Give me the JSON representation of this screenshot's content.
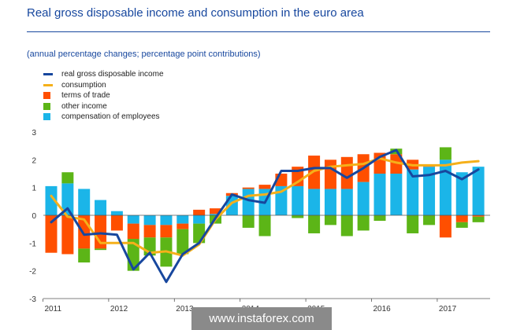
{
  "page": {
    "title": "Real gross disposable income and consumption in the euro area",
    "subtitle": "(annual percentage changes; percentage point contributions)",
    "watermark": "www.instaforex.com"
  },
  "legend": [
    {
      "label": "real gross disposable income",
      "kind": "line",
      "color": "#17479e"
    },
    {
      "label": "consumption",
      "kind": "line",
      "color": "#f5b01a"
    },
    {
      "label": "terms of trade",
      "kind": "box",
      "color": "#ff4f00"
    },
    {
      "label": "other income",
      "kind": "box",
      "color": "#5cb517"
    },
    {
      "label": "compensation of employees",
      "kind": "box",
      "color": "#1bb5e8"
    }
  ],
  "chart_data": {
    "type": "bar",
    "stacked": true,
    "ylim": [
      -3,
      3
    ],
    "yticks": [
      3,
      2,
      1,
      0,
      -1,
      -2,
      -3
    ],
    "year_labels": [
      "2011",
      "2012",
      "2013",
      "2014",
      "2015",
      "2016",
      "2017"
    ],
    "categories": [
      "2011Q1",
      "2011Q2",
      "2011Q3",
      "2011Q4",
      "2012Q1",
      "2012Q2",
      "2012Q3",
      "2012Q4",
      "2013Q1",
      "2013Q2",
      "2013Q3",
      "2013Q4",
      "2014Q1",
      "2014Q2",
      "2014Q3",
      "2014Q4",
      "2015Q1",
      "2015Q2",
      "2015Q3",
      "2015Q4",
      "2016Q1",
      "2016Q2",
      "2016Q3",
      "2016Q4",
      "2017Q1",
      "2017Q2",
      "2017Q3"
    ],
    "grid": false,
    "series": [
      {
        "name": "compensation of employees",
        "kind": "bar",
        "color": "#1bb5e8",
        "values": [
          1.05,
          1.15,
          0.95,
          0.55,
          0.15,
          -0.3,
          -0.35,
          -0.35,
          -0.3,
          -0.3,
          0.05,
          0.7,
          0.95,
          0.95,
          1.05,
          1.05,
          0.95,
          0.95,
          0.95,
          1.2,
          1.5,
          1.5,
          1.65,
          1.75,
          2.0,
          1.55,
          1.75
        ]
      },
      {
        "name": "terms of trade",
        "kind": "bar",
        "color": "#ff4f00",
        "values": [
          -1.35,
          -1.4,
          -1.2,
          -1.2,
          -0.55,
          -0.55,
          -0.45,
          -0.45,
          -0.2,
          0.2,
          0.2,
          0.1,
          0.05,
          0.15,
          0.45,
          0.7,
          1.2,
          1.05,
          1.15,
          1.0,
          0.75,
          0.7,
          0.35,
          0.05,
          -0.8,
          -0.25,
          -0.05
        ]
      },
      {
        "name": "other income",
        "kind": "bar",
        "color": "#5cb517",
        "values": [
          0.0,
          0.4,
          -0.5,
          -0.05,
          0.0,
          -1.15,
          -0.65,
          -1.05,
          -0.9,
          -0.7,
          -0.3,
          0.0,
          -0.45,
          -0.75,
          0.0,
          -0.1,
          -0.65,
          -0.35,
          -0.75,
          -0.55,
          -0.2,
          0.2,
          -0.65,
          -0.35,
          0.45,
          -0.2,
          -0.2
        ]
      },
      {
        "name": "real gross disposable income",
        "kind": "line",
        "color": "#17479e",
        "x": [
          0,
          1,
          2,
          3,
          4,
          5,
          6,
          7,
          8,
          9,
          10,
          11,
          12,
          13,
          14,
          15,
          16,
          17,
          18,
          19,
          20,
          21,
          22,
          23,
          24,
          25,
          26
        ],
        "values": [
          -0.25,
          0.25,
          -0.7,
          -0.65,
          -0.7,
          -1.95,
          -1.35,
          -2.4,
          -1.4,
          -1.0,
          -0.1,
          0.75,
          0.55,
          0.45,
          1.6,
          1.6,
          1.7,
          1.7,
          1.35,
          1.7,
          2.1,
          2.35,
          1.4,
          1.45,
          1.6,
          1.3,
          1.65
        ]
      },
      {
        "name": "consumption",
        "kind": "line",
        "color": "#f5b01a",
        "x": [
          0,
          1,
          2,
          3,
          4,
          5,
          6,
          7,
          8,
          9,
          10,
          11,
          12,
          13,
          14,
          15,
          16,
          17,
          18,
          19,
          20,
          21,
          22,
          23,
          24,
          25,
          26
        ],
        "values": [
          0.7,
          -0.05,
          -0.15,
          -1.0,
          -1.0,
          -1.0,
          -1.35,
          -1.3,
          -1.45,
          -1.05,
          -0.15,
          0.45,
          0.7,
          0.75,
          0.85,
          1.2,
          1.6,
          1.75,
          1.8,
          1.85,
          2.05,
          1.9,
          1.8,
          1.8,
          1.8,
          1.9,
          1.95
        ]
      }
    ]
  }
}
